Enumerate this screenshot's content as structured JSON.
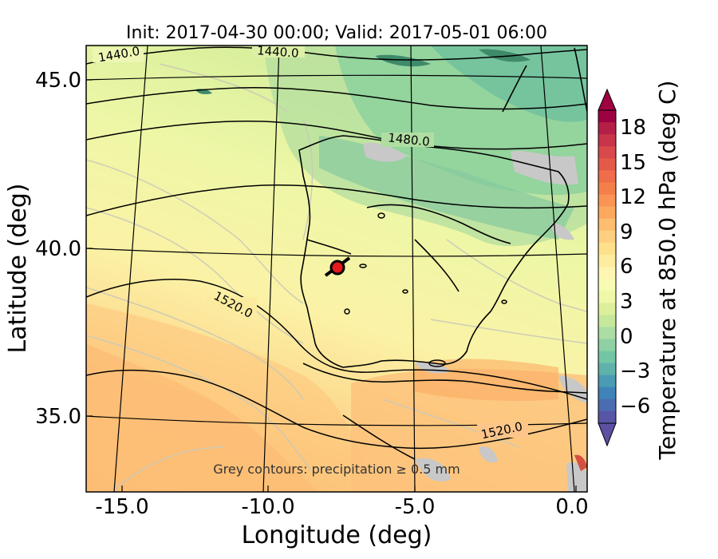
{
  "title": "Init: 2017-04-30 00:00; Valid: 2017-05-01 06:00",
  "xlabel": "Longitude (deg)",
  "ylabel": "Latitude (deg)",
  "x_ticks": [
    "-15.0",
    "-10.0",
    "-5.0",
    "0.0"
  ],
  "y_ticks": [
    "45.0",
    "40.0",
    "35.0"
  ],
  "colorbar": {
    "label": "Temperature at 850.0 hPa (deg C)",
    "ticks": [
      "18",
      "15",
      "12",
      "9",
      "6",
      "3",
      "0",
      "−3",
      "−6"
    ]
  },
  "contour_labels": [
    "1440.0",
    "1440.0",
    "1480.0",
    "1520.0",
    "1520.0"
  ],
  "note": "Grey contours: precipitation  ≥ 0.5 mm",
  "marker": {
    "lon": -7.6,
    "lat": 39.4,
    "color": "#e41a1c"
  }
}
